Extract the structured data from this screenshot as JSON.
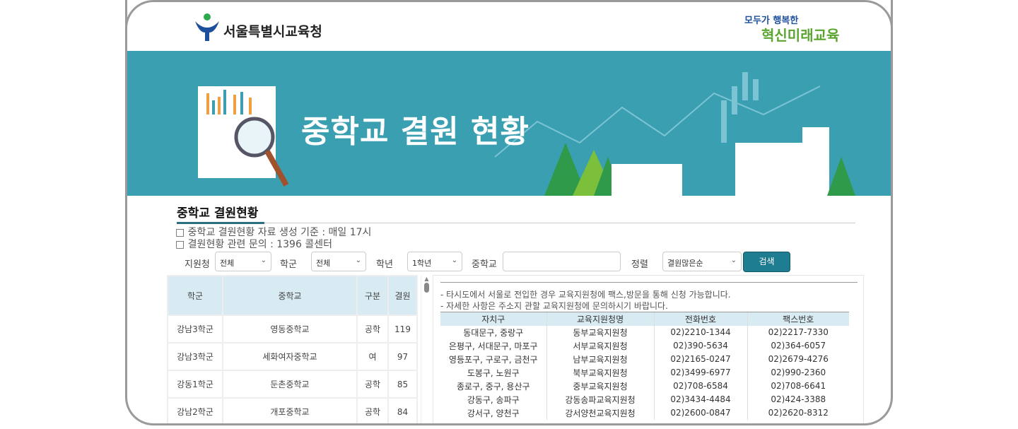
{
  "header": {
    "org_name": "서울특별시교육청",
    "slogan_top": "모두가 행복한",
    "slogan_main": "혁신미래교육"
  },
  "banner": {
    "title": "중학교 결원 현황"
  },
  "section": {
    "title": "중학교 결원현황",
    "notes": [
      "□ 중학교 결원현황 자료 생성 기준 : 매일 17시",
      "□ 결원현황 관련 문의 : 1396 콜센터"
    ]
  },
  "filters": {
    "office_label": "지원청",
    "office_value": "전체",
    "district_label": "학군",
    "district_value": "전체",
    "grade_label": "학년",
    "grade_value": "1학년",
    "school_label": "중학교",
    "school_value": "",
    "sort_label": "정렬",
    "sort_value": "결원많은순",
    "search_button": "검색"
  },
  "vacancy_table": {
    "headers": [
      "학군",
      "중학교",
      "구분",
      "결원"
    ],
    "rows": [
      [
        "강남3학군",
        "영동중학교",
        "공학",
        "119"
      ],
      [
        "강남3학군",
        "세화여자중학교",
        "여",
        "97"
      ],
      [
        "강동1학군",
        "둔촌중학교",
        "공학",
        "85"
      ],
      [
        "강남2학군",
        "개포중학교",
        "공학",
        "84"
      ]
    ]
  },
  "info_panel": {
    "notes": [
      "- 타시도에서 서울로 전입한 경우 교육지원청에 팩스,방문을 통해 신청 가능합니다.",
      "- 자세한 사항은 주소지 관할 교육지원청에 문의하시기 바랍니다."
    ],
    "headers": [
      "자치구",
      "교육지원청명",
      "전화번호",
      "팩스번호"
    ],
    "rows": [
      [
        "동대문구, 중랑구",
        "동부교육지원청",
        "02)2210-1344",
        "02)2217-7330"
      ],
      [
        "은평구, 서대문구, 마포구",
        "서부교육지원청",
        "02)390-5634",
        "02)364-6057"
      ],
      [
        "영등포구, 구로구, 금천구",
        "남부교육지원청",
        "02)2165-0247",
        "02)2679-4276"
      ],
      [
        "도봉구, 노원구",
        "북부교육지원청",
        "02)3499-6977",
        "02)990-2360"
      ],
      [
        "종로구, 중구, 용산구",
        "중부교육지원청",
        "02)708-6584",
        "02)708-6641"
      ],
      [
        "강동구, 송파구",
        "강동송파교육지원청",
        "02)3434-4484",
        "02)424-3388"
      ],
      [
        "강서구, 양천구",
        "강서양천교육지원청",
        "02)2600-0847",
        "02)2620-8312"
      ]
    ]
  },
  "colors": {
    "banner": "#3a9fb0",
    "accent": "#1f7d92",
    "table_header": "#d8ebf2"
  }
}
